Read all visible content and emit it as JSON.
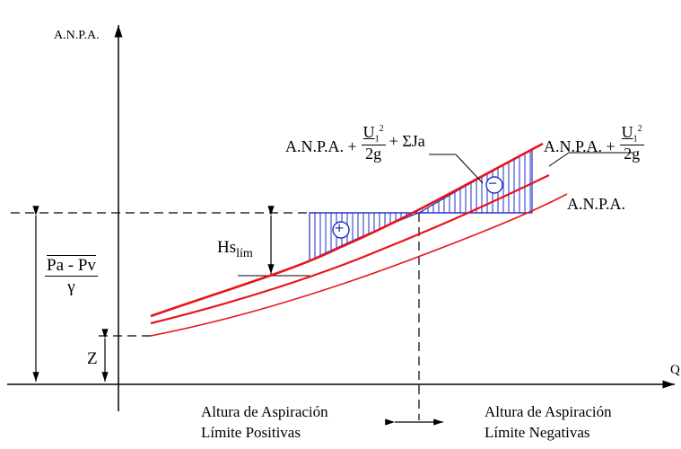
{
  "diagram": {
    "y_axis_label": "A.N.P.A.",
    "x_axis_label": "Q",
    "curve_label_plain": "A.N.P.A.",
    "curve_label_velocity": {
      "prefix": "A.N.P.A. +",
      "numerator": "U",
      "subscript": "1",
      "superscript": "2",
      "denominator": "2g"
    },
    "curve_label_losses": {
      "prefix": "A.N.P.A. +",
      "numerator": "U",
      "subscript": "1",
      "superscript": "2",
      "denominator": "2g",
      "suffix": "+ ΣJa"
    },
    "pressure_fraction": {
      "numerator": "Pa - Pv",
      "denominator": "γ"
    },
    "z_label": "Z",
    "hs_label": "Hs",
    "hs_subscript": "lím",
    "plus_sign": "+",
    "minus_sign": "−",
    "region_left": {
      "line1": "Altura de Aspiración",
      "line2": "Límite Positivas"
    },
    "region_right": {
      "line1": "Altura de Aspiración",
      "line2": "Límite Negativas"
    },
    "colors": {
      "curves": "#e8141c",
      "hatch": "#1d2fc8",
      "lines": "#000000"
    }
  }
}
